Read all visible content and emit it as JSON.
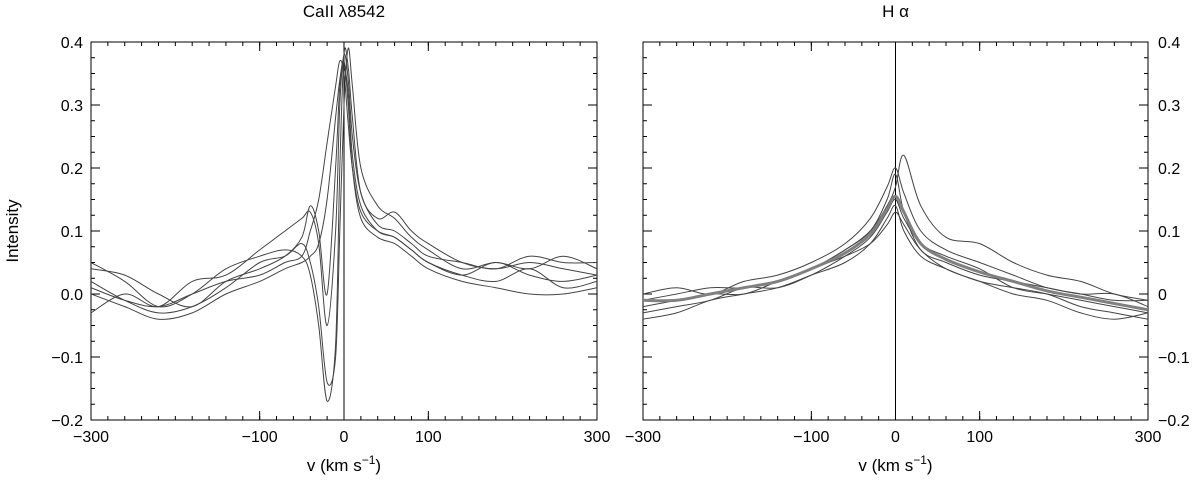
{
  "chart_data": [
    {
      "type": "line",
      "title": "CaII λ8542",
      "xlabel": "v (km s",
      "xlabel_sup": "−1",
      "xlabel_tail": ")",
      "ylabel": "Intensity",
      "xlim": [
        -300,
        300
      ],
      "ylim": [
        -0.2,
        0.4
      ],
      "x_ticks": [
        -300,
        -100,
        0,
        100,
        300
      ],
      "x_tick_labels": [
        "−300",
        "−100",
        "0",
        "100",
        "300"
      ],
      "y_ticks": [
        -0.2,
        -0.1,
        0.0,
        0.1,
        0.2,
        0.3,
        0.4
      ],
      "y_tick_labels": [
        "−0.2",
        "−0.1",
        "0.0",
        "0.1",
        "0.2",
        "0.3",
        "0.4"
      ],
      "y_labels_side": "left",
      "vline_x": 0,
      "line_color": "#444444",
      "series": [
        {
          "x": [
            -300,
            -260,
            -220,
            -180,
            -140,
            -100,
            -70,
            -50,
            -40,
            -30,
            -20,
            -10,
            -5,
            0,
            5,
            10,
            20,
            40,
            60,
            80,
            100,
            140,
            180,
            220,
            260,
            300
          ],
          "y": [
            0.05,
            0.02,
            -0.02,
            0.0,
            0.04,
            0.06,
            0.07,
            0.06,
            0.03,
            -0.05,
            -0.17,
            -0.08,
            0.2,
            0.38,
            0.36,
            0.28,
            0.16,
            0.12,
            0.13,
            0.1,
            0.08,
            0.05,
            0.04,
            0.05,
            0.04,
            0.03
          ]
        },
        {
          "x": [
            -300,
            -260,
            -220,
            -180,
            -140,
            -100,
            -70,
            -50,
            -40,
            -30,
            -20,
            -10,
            -5,
            0,
            5,
            10,
            20,
            40,
            60,
            80,
            100,
            140,
            180,
            220,
            260,
            300
          ],
          "y": [
            0.02,
            -0.01,
            -0.03,
            -0.02,
            0.01,
            0.05,
            0.06,
            0.08,
            0.05,
            -0.02,
            -0.14,
            -0.1,
            0.1,
            0.3,
            0.39,
            0.33,
            0.2,
            0.14,
            0.12,
            0.09,
            0.07,
            0.04,
            0.05,
            0.04,
            0.06,
            0.04
          ]
        },
        {
          "x": [
            -300,
            -260,
            -220,
            -180,
            -140,
            -100,
            -70,
            -50,
            -40,
            -30,
            -20,
            -10,
            -5,
            0,
            5,
            10,
            20,
            40,
            60,
            80,
            100,
            140,
            180,
            220,
            260,
            300
          ],
          "y": [
            -0.03,
            0.0,
            -0.02,
            0.02,
            0.03,
            0.07,
            0.1,
            0.12,
            0.13,
            0.08,
            -0.05,
            0.1,
            0.3,
            0.38,
            0.34,
            0.25,
            0.16,
            0.11,
            0.1,
            0.08,
            0.06,
            0.05,
            0.04,
            0.06,
            0.05,
            0.05
          ]
        },
        {
          "x": [
            -300,
            -260,
            -220,
            -180,
            -140,
            -100,
            -70,
            -50,
            -40,
            -30,
            -20,
            -10,
            -5,
            0,
            5,
            10,
            20,
            40,
            60,
            80,
            100,
            140,
            180,
            220,
            260,
            300
          ],
          "y": [
            0.04,
            0.03,
            0.0,
            -0.02,
            0.02,
            0.04,
            0.06,
            0.09,
            0.14,
            0.1,
            0.0,
            0.2,
            0.33,
            0.36,
            0.32,
            0.22,
            0.14,
            0.1,
            0.09,
            0.07,
            0.05,
            0.03,
            0.05,
            0.03,
            0.02,
            0.03
          ]
        },
        {
          "x": [
            -300,
            -260,
            -220,
            -180,
            -140,
            -100,
            -70,
            -50,
            -40,
            -30,
            -20,
            -10,
            -5,
            0,
            5,
            10,
            20,
            40,
            60,
            80,
            100,
            140,
            180,
            220,
            260,
            300
          ],
          "y": [
            0.0,
            -0.02,
            -0.04,
            -0.03,
            0.0,
            0.02,
            0.04,
            0.05,
            0.06,
            0.08,
            0.15,
            0.28,
            0.34,
            0.37,
            0.3,
            0.2,
            0.12,
            0.09,
            0.08,
            0.06,
            0.04,
            0.02,
            0.01,
            0.0,
            0.0,
            0.01
          ]
        },
        {
          "x": [
            -300,
            -260,
            -220,
            -180,
            -140,
            -100,
            -70,
            -50,
            -40,
            -30,
            -20,
            -10,
            -5,
            0,
            5,
            10,
            20,
            40,
            60,
            80,
            100,
            140,
            180,
            220,
            260,
            300
          ],
          "y": [
            0.01,
            -0.01,
            -0.02,
            0.0,
            0.02,
            0.03,
            0.05,
            0.06,
            0.1,
            0.15,
            0.24,
            0.33,
            0.37,
            0.35,
            0.27,
            0.2,
            0.13,
            0.1,
            0.09,
            0.07,
            0.05,
            0.03,
            0.02,
            0.04,
            0.01,
            0.02
          ]
        }
      ]
    },
    {
      "type": "line",
      "title": "H α",
      "xlabel": "v (km s",
      "xlabel_sup": "−1",
      "xlabel_tail": ")",
      "ylabel": "",
      "xlim": [
        -300,
        300
      ],
      "ylim": [
        -0.2,
        0.4
      ],
      "x_ticks": [
        -300,
        -100,
        0,
        100,
        300
      ],
      "x_tick_labels": [
        "−300",
        "−100",
        "0",
        "100",
        "300"
      ],
      "y_ticks": [
        -0.2,
        -0.1,
        0.0,
        0.1,
        0.2,
        0.3,
        0.4
      ],
      "y_tick_labels": [
        "−0.2",
        "−0.1",
        "0",
        "0.1",
        "0.2",
        "0.3",
        "0.4"
      ],
      "y_labels_side": "right",
      "vline_x": 0,
      "line_color": "#444444",
      "mean_color": "#808080",
      "series": [
        {
          "x": [
            -300,
            -260,
            -220,
            -180,
            -140,
            -100,
            -60,
            -30,
            -10,
            0,
            10,
            30,
            60,
            100,
            140,
            180,
            220,
            260,
            300
          ],
          "y": [
            -0.01,
            -0.01,
            0.0,
            0.01,
            0.02,
            0.04,
            0.07,
            0.1,
            0.15,
            0.19,
            0.13,
            0.07,
            0.05,
            0.03,
            0.02,
            0.01,
            0.0,
            0.0,
            -0.02
          ]
        },
        {
          "x": [
            -300,
            -260,
            -220,
            -180,
            -140,
            -100,
            -60,
            -30,
            -10,
            0,
            10,
            30,
            60,
            100,
            140,
            180,
            220,
            260,
            300
          ],
          "y": [
            -0.03,
            -0.02,
            -0.01,
            0.01,
            0.01,
            0.03,
            0.06,
            0.09,
            0.13,
            0.15,
            0.12,
            0.08,
            0.06,
            0.04,
            0.01,
            0.0,
            -0.01,
            -0.02,
            -0.03
          ]
        },
        {
          "x": [
            -300,
            -260,
            -220,
            -180,
            -140,
            -100,
            -60,
            -30,
            -10,
            0,
            10,
            30,
            60,
            100,
            140,
            180,
            220,
            260,
            300
          ],
          "y": [
            0.0,
            0.01,
            0.0,
            0.02,
            0.03,
            0.05,
            0.08,
            0.12,
            0.17,
            0.2,
            0.16,
            0.1,
            0.07,
            0.05,
            0.03,
            0.01,
            0.0,
            -0.01,
            -0.01
          ]
        },
        {
          "x": [
            -300,
            -260,
            -220,
            -180,
            -140,
            -100,
            -60,
            -30,
            -10,
            0,
            10,
            30,
            60,
            100,
            140,
            180,
            220,
            260,
            300
          ],
          "y": [
            -0.02,
            -0.01,
            0.0,
            0.0,
            0.02,
            0.04,
            0.06,
            0.08,
            0.11,
            0.13,
            0.11,
            0.07,
            0.04,
            0.02,
            0.0,
            -0.01,
            -0.03,
            -0.04,
            -0.03
          ]
        },
        {
          "x": [
            -300,
            -260,
            -220,
            -180,
            -140,
            -100,
            -60,
            -30,
            -10,
            0,
            10,
            30,
            60,
            100,
            140,
            180,
            220,
            260,
            300
          ],
          "y": [
            -0.01,
            0.0,
            0.01,
            0.01,
            0.02,
            0.04,
            0.07,
            0.1,
            0.14,
            0.17,
            0.22,
            0.14,
            0.09,
            0.08,
            0.05,
            0.03,
            0.02,
            0.0,
            -0.01
          ]
        },
        {
          "x": [
            -300,
            -260,
            -220,
            -180,
            -140,
            -100,
            -60,
            -30,
            -10,
            0,
            10,
            30,
            60,
            100,
            140,
            180,
            220,
            260,
            300
          ],
          "y": [
            -0.04,
            -0.03,
            -0.01,
            0.0,
            0.01,
            0.03,
            0.05,
            0.08,
            0.12,
            0.14,
            0.1,
            0.06,
            0.04,
            0.02,
            0.01,
            0.0,
            -0.02,
            -0.03,
            -0.04
          ]
        }
      ],
      "mean_series": {
        "x": [
          -300,
          -260,
          -220,
          -180,
          -140,
          -100,
          -60,
          -30,
          -10,
          0,
          10,
          30,
          60,
          100,
          140,
          180,
          220,
          260,
          300
        ],
        "y": [
          -0.01,
          -0.01,
          0.0,
          0.01,
          0.02,
          0.04,
          0.065,
          0.095,
          0.135,
          0.155,
          0.13,
          0.08,
          0.055,
          0.035,
          0.02,
          0.005,
          -0.005,
          -0.015,
          -0.025
        ]
      }
    }
  ]
}
